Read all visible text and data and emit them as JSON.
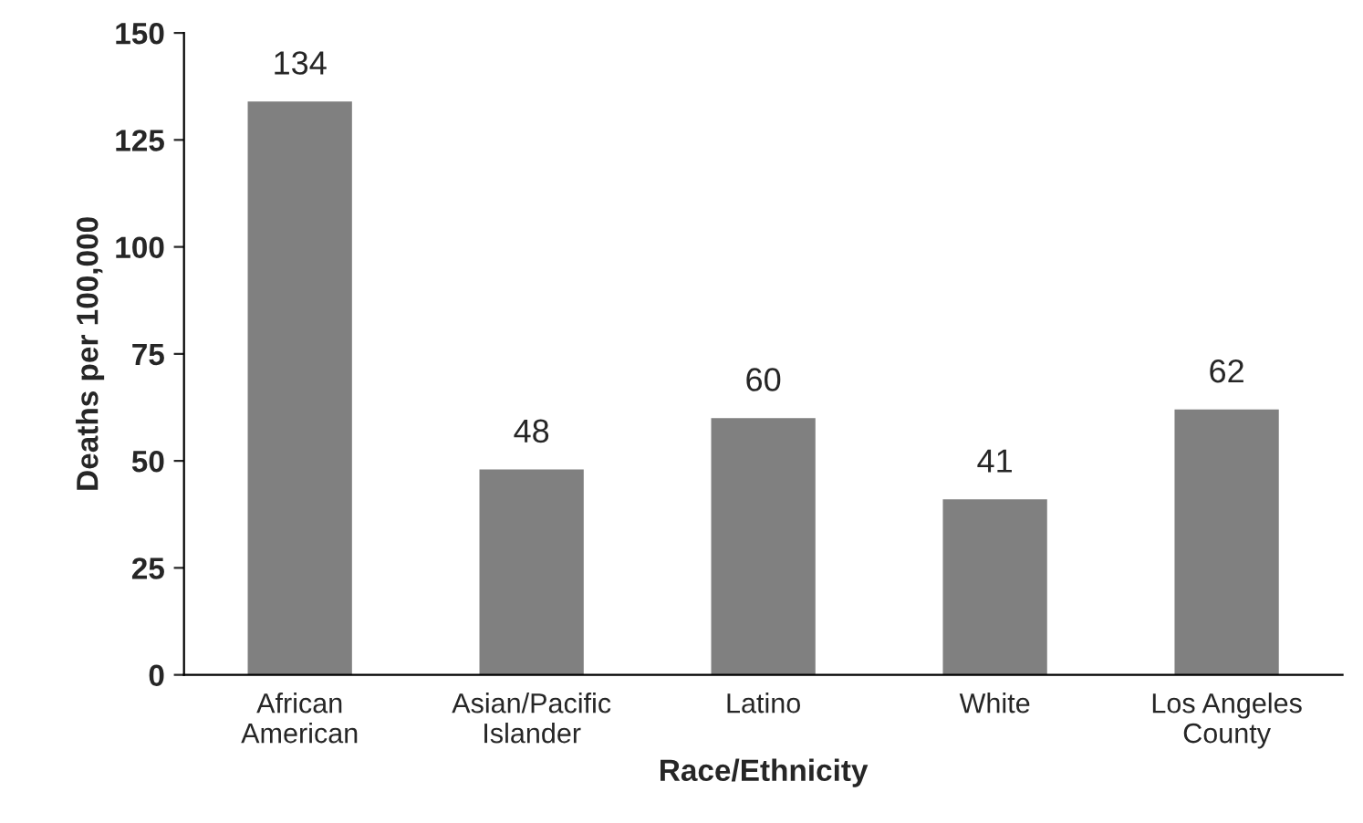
{
  "chart_data": {
    "type": "bar",
    "xlabel": "Race/Ethnicity",
    "ylabel": "Deaths per 100,000",
    "categories": [
      "African\nAmerican",
      "Asian/Pacific\nIslander",
      "Latino",
      "White",
      "Los Angeles\nCounty"
    ],
    "values": [
      134,
      48,
      60,
      41,
      62
    ],
    "color": "#808080",
    "ylim": [
      0,
      150
    ],
    "yticks": [
      0,
      25,
      50,
      75,
      100,
      125,
      150
    ],
    "grid": false,
    "data_labels": true
  }
}
